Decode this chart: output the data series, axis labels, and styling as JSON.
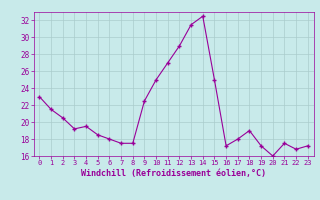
{
  "x": [
    0,
    1,
    2,
    3,
    4,
    5,
    6,
    7,
    8,
    9,
    10,
    11,
    12,
    13,
    14,
    15,
    16,
    17,
    18,
    19,
    20,
    21,
    22,
    23
  ],
  "y": [
    23.0,
    21.5,
    20.5,
    19.2,
    19.5,
    18.5,
    18.0,
    17.5,
    17.5,
    22.5,
    25.0,
    27.0,
    29.0,
    31.5,
    32.5,
    25.0,
    17.2,
    18.0,
    19.0,
    17.2,
    16.0,
    17.5,
    16.8,
    17.2
  ],
  "line_color": "#990099",
  "marker": "+",
  "marker_size": 4,
  "bg_color": "#c8eaea",
  "grid_color": "#aacccc",
  "xlabel": "Windchill (Refroidissement éolien,°C)",
  "xlabel_color": "#990099",
  "tick_color": "#990099",
  "label_color": "#990099",
  "ylim": [
    16,
    33
  ],
  "xlim": [
    -0.5,
    23.5
  ],
  "yticks": [
    16,
    18,
    20,
    22,
    24,
    26,
    28,
    30,
    32
  ],
  "xticks": [
    0,
    1,
    2,
    3,
    4,
    5,
    6,
    7,
    8,
    9,
    10,
    11,
    12,
    13,
    14,
    15,
    16,
    17,
    18,
    19,
    20,
    21,
    22,
    23
  ],
  "xtick_labels": [
    "0",
    "1",
    "2",
    "3",
    "4",
    "5",
    "6",
    "7",
    "8",
    "9",
    "10",
    "11",
    "12",
    "13",
    "14",
    "15",
    "16",
    "17",
    "18",
    "19",
    "20",
    "21",
    "22",
    "23"
  ]
}
